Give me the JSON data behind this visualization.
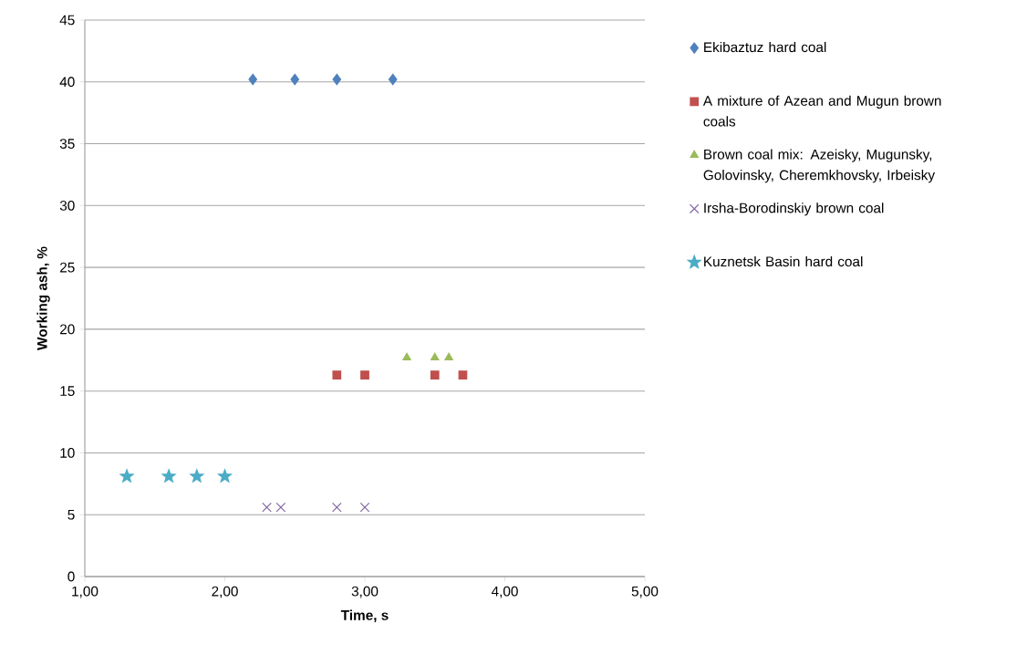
{
  "chart_data": {
    "type": "scatter",
    "xlabel": "Time, s",
    "ylabel": "Working ash, %",
    "xlim": [
      1,
      5
    ],
    "xticks": [
      {
        "value": 1,
        "label": "1,00"
      },
      {
        "value": 2,
        "label": "2,00"
      },
      {
        "value": 3,
        "label": "3,00"
      },
      {
        "value": 4,
        "label": "4,00"
      },
      {
        "value": 5,
        "label": "5,00"
      }
    ],
    "ylim": [
      0,
      45
    ],
    "yticks": [
      0,
      5,
      10,
      15,
      20,
      25,
      30,
      35,
      40,
      45
    ],
    "grid": "y",
    "legend": "right",
    "series": [
      {
        "name": "Ekibaztuz hard coal",
        "color": "#4f81bd",
        "marker": "diamond",
        "x": [
          2.2,
          2.5,
          2.8,
          3.2
        ],
        "values": [
          40.2,
          40.2,
          40.2,
          40.2
        ]
      },
      {
        "name": "A mixture of Azean and Mugun brown coals",
        "color": "#c0504d",
        "marker": "square",
        "x": [
          2.8,
          3.0,
          3.5,
          3.7
        ],
        "values": [
          16.3,
          16.3,
          16.3,
          16.3
        ]
      },
      {
        "name": "Brown coal mix: Azeisky, Mugunsky, Golovinsky, Cheremkhovsky, Irbeisky",
        "color": "#9bbb59",
        "marker": "triangle",
        "x": [
          3.3,
          3.5,
          3.6
        ],
        "values": [
          17.7,
          17.7,
          17.7
        ]
      },
      {
        "name": "Irsha-Borodinskiy brown coal",
        "color": "#8064a2",
        "marker": "cross",
        "x": [
          2.3,
          2.4,
          2.8,
          3.0
        ],
        "values": [
          5.6,
          5.6,
          5.6,
          5.6
        ]
      },
      {
        "name": "Kuznetsk Basin hard coal",
        "color": "#4bacc6",
        "marker": "star",
        "x": [
          1.3,
          1.6,
          1.8,
          2.0
        ],
        "values": [
          8.1,
          8.1,
          8.1,
          8.1
        ]
      }
    ]
  }
}
